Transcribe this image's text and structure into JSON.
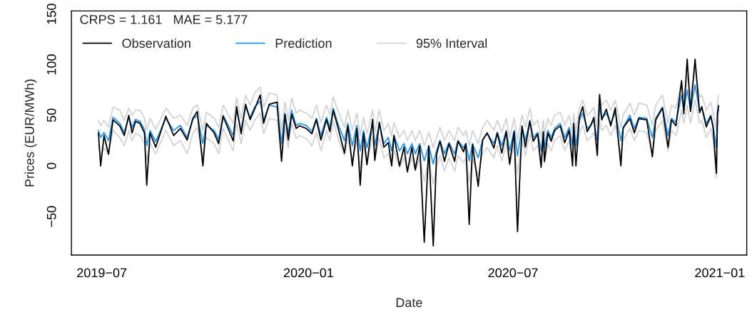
{
  "chart_data": {
    "type": "line",
    "xlabel": "Date",
    "ylabel": "Prices (EUR/MWh)",
    "annotations": [
      "CRPS = 1.161   MAE = 5.177"
    ],
    "xlim": [
      "2019-06-04",
      "2021-01-25"
    ],
    "xticks": [
      {
        "value": "2019-07-01",
        "label": "2019−07"
      },
      {
        "value": "2020-01-01",
        "label": "2020−01"
      },
      {
        "value": "2020-07-01",
        "label": "2020−07"
      },
      {
        "value": "2021-01-01",
        "label": "2021−01"
      }
    ],
    "ylim": [
      -88,
      153
    ],
    "yticks": [
      {
        "value": -50,
        "label": "−50"
      },
      0,
      50,
      100,
      150
    ],
    "grid": false,
    "legend": "top left",
    "marker": "none",
    "line_style": "solid",
    "x": [
      "2019-06-28",
      "2019-06-30",
      "2019-07-03",
      "2019-07-07",
      "2019-07-11",
      "2019-07-17",
      "2019-07-21",
      "2019-07-25",
      "2019-07-28",
      "2019-07-31",
      "2019-08-04",
      "2019-08-08",
      "2019-08-10",
      "2019-08-13",
      "2019-08-18",
      "2019-08-27",
      "2019-09-03",
      "2019-09-09",
      "2019-09-15",
      "2019-09-20",
      "2019-09-24",
      "2019-09-29",
      "2019-10-02",
      "2019-10-09",
      "2019-10-13",
      "2019-10-17",
      "2019-10-26",
      "2019-10-29",
      "2019-11-02",
      "2019-11-06",
      "2019-11-10",
      "2019-11-14",
      "2019-11-19",
      "2019-11-22",
      "2019-11-27",
      "2019-12-04",
      "2019-12-08",
      "2019-12-11",
      "2019-12-14",
      "2019-12-17",
      "2019-12-21",
      "2019-12-24",
      "2019-12-30",
      "2020-01-04",
      "2020-01-08",
      "2020-01-12",
      "2020-01-17",
      "2020-01-20",
      "2020-01-23",
      "2020-01-27",
      "2020-02-02",
      "2020-02-05",
      "2020-02-09",
      "2020-02-13",
      "2020-02-16",
      "2020-02-19",
      "2020-02-22",
      "2020-02-27",
      "2020-02-29",
      "2020-03-04",
      "2020-03-08",
      "2020-03-12",
      "2020-03-15",
      "2020-03-17",
      "2020-03-22",
      "2020-03-26",
      "2020-03-29",
      "2020-04-02",
      "2020-04-05",
      "2020-04-09",
      "2020-04-13",
      "2020-04-17",
      "2020-04-21",
      "2020-04-24",
      "2020-04-27",
      "2020-05-01",
      "2020-05-05",
      "2020-05-10",
      "2020-05-13",
      "2020-05-18",
      "2020-05-20",
      "2020-05-23",
      "2020-05-26",
      "2020-05-31",
      "2020-06-04",
      "2020-06-08",
      "2020-06-14",
      "2020-06-17",
      "2020-06-21",
      "2020-06-25",
      "2020-06-28",
      "2020-07-02",
      "2020-07-05",
      "2020-07-09",
      "2020-07-12",
      "2020-07-16",
      "2020-07-19",
      "2020-07-23",
      "2020-07-26",
      "2020-07-28",
      "2020-07-29",
      "2020-08-01",
      "2020-08-04",
      "2020-08-07",
      "2020-08-12",
      "2020-08-16",
      "2020-08-20",
      "2020-08-23",
      "2020-08-24",
      "2020-08-26",
      "2020-08-29",
      "2020-09-01",
      "2020-09-05",
      "2020-09-08",
      "2020-09-11",
      "2020-09-14",
      "2020-09-16",
      "2020-09-18",
      "2020-09-22",
      "2020-09-26",
      "2020-09-30",
      "2020-10-05",
      "2020-10-07",
      "2020-10-13",
      "2020-10-17",
      "2020-10-21",
      "2020-10-28",
      "2020-11-02",
      "2020-11-05",
      "2020-11-11",
      "2020-11-16",
      "2020-11-19",
      "2020-11-23",
      "2020-11-28",
      "2020-11-30",
      "2020-12-03",
      "2020-12-06",
      "2020-12-10",
      "2020-12-14",
      "2020-12-16",
      "2020-12-20",
      "2020-12-24",
      "2020-12-26",
      "2020-12-29",
      "2020-12-30",
      "2020-12-31"
    ],
    "series": [
      {
        "name": "Observation",
        "color": "#000000",
        "values": [
          32.6,
          0,
          30,
          11.5,
          45.5,
          39.6,
          30,
          50,
          32.6,
          44,
          42,
          32.6,
          -19,
          32.6,
          18.5,
          49,
          30,
          37,
          25.6,
          46.7,
          53.8,
          0,
          42,
          32.6,
          22,
          49,
          24.6,
          58.5,
          31.7,
          60.8,
          45.8,
          56,
          70,
          42,
          60.8,
          63,
          4.5,
          51,
          25.6,
          51,
          37,
          39.6,
          37,
          31.7,
          45.8,
          25.6,
          45.8,
          33.8,
          55,
          38.7,
          12.7,
          39.6,
          0,
          37,
          -19,
          32.6,
          1,
          45.8,
          5.6,
          43,
          18.5,
          23,
          0,
          30,
          0,
          18.5,
          -6,
          18.5,
          -3.8,
          19.7,
          -75.4,
          19.7,
          -78.9,
          11.5,
          24.4,
          4.5,
          22,
          4.5,
          24.4,
          14,
          22,
          -57.7,
          21,
          -20,
          25.6,
          32.6,
          17.6,
          32.6,
          12.7,
          33.8,
          2,
          33.8,
          -64.8,
          39.6,
          18.5,
          44,
          24.4,
          31.5,
          -1.4,
          33.8,
          4.5,
          32.6,
          24.4,
          35,
          39.6,
          23,
          35,
          0,
          42,
          0,
          47.9,
          58.5,
          33.8,
          39.6,
          47.9,
          10.3,
          70.2,
          45.5,
          56,
          39.6,
          57.2,
          0,
          37.3,
          46.7,
          32.6,
          46.7,
          45.5,
          9,
          45.5,
          57.2,
          18.5,
          45.5,
          39.6,
          84.3,
          51.4,
          105.4,
          53.7,
          105.4,
          52.6,
          58.5,
          38.5,
          49,
          38.5,
          -7.3,
          52.6,
          59.6
        ]
      },
      {
        "name": "Prediction",
        "color": "#2196f3",
        "values": [
          35,
          28,
          33,
          25,
          48,
          42,
          33,
          48,
          38,
          46,
          44,
          36,
          20,
          35,
          24,
          47,
          35,
          40,
          28,
          46,
          50,
          22,
          40,
          35,
          26,
          50,
          30,
          55,
          35,
          58,
          48,
          58,
          64,
          45,
          60,
          58,
          22,
          52,
          32,
          55,
          40,
          42,
          40,
          34,
          47,
          30,
          48,
          38,
          57,
          42,
          25,
          42,
          20,
          40,
          15,
          35,
          18,
          42,
          20,
          42,
          22,
          28,
          15,
          30,
          15,
          22,
          12,
          22,
          12,
          22,
          5,
          20,
          2,
          15,
          25,
          12,
          23,
          12,
          25,
          18,
          22,
          5,
          22,
          8,
          26,
          32,
          22,
          33,
          20,
          35,
          15,
          35,
          10,
          38,
          25,
          45,
          28,
          33,
          15,
          33,
          18,
          35,
          28,
          37,
          42,
          28,
          38,
          20,
          40,
          20,
          45,
          52,
          37,
          40,
          45,
          25,
          58,
          47,
          52,
          42,
          53,
          25,
          38,
          50,
          37,
          48,
          47,
          28,
          47,
          58,
          30,
          47,
          43,
          70,
          55,
          75,
          55,
          80,
          55,
          57,
          42,
          50,
          40,
          18,
          50,
          56
        ]
      },
      {
        "name": "95% Interval",
        "color": "#d3d3d3",
        "values": [
          20,
          10,
          18,
          12,
          35,
          28,
          20,
          35,
          25,
          32,
          30,
          22,
          5,
          22,
          12,
          35,
          20,
          25,
          12,
          32,
          38,
          10,
          28,
          22,
          12,
          37,
          15,
          42,
          22,
          45,
          35,
          45,
          52,
          32,
          47,
          45,
          8,
          38,
          18,
          42,
          27,
          30,
          27,
          20,
          33,
          15,
          35,
          25,
          45,
          28,
          10,
          28,
          5,
          25,
          -2,
          20,
          3,
          28,
          5,
          28,
          8,
          12,
          0,
          15,
          -2,
          8,
          -5,
          8,
          -5,
          8,
          -15,
          5,
          -18,
          0,
          10,
          -5,
          8,
          -5,
          10,
          3,
          8,
          -15,
          7,
          -10,
          12,
          18,
          8,
          20,
          5,
          22,
          0,
          22,
          -8,
          25,
          10,
          32,
          15,
          20,
          0,
          20,
          3,
          22,
          15,
          25,
          30,
          15,
          25,
          5,
          28,
          5,
          32,
          40,
          25,
          28,
          33,
          10,
          45,
          35,
          40,
          30,
          40,
          10,
          25,
          37,
          25,
          35,
          33,
          12,
          35,
          45,
          15,
          35,
          30,
          55,
          42,
          60,
          42,
          65,
          42,
          45,
          28,
          37,
          27,
          -12,
          38,
          45
        ]
      },
      {
        "color": "#d3d3d3",
        "values": [
          45,
          40,
          45,
          38,
          58,
          55,
          45,
          57,
          50,
          55,
          55,
          47,
          35,
          47,
          36,
          57,
          47,
          50,
          40,
          57,
          60,
          35,
          53,
          47,
          38,
          60,
          42,
          67,
          47,
          70,
          60,
          72,
          78,
          58,
          72,
          70,
          35,
          63,
          45,
          67,
          52,
          55,
          52,
          47,
          60,
          43,
          60,
          50,
          68,
          55,
          38,
          55,
          35,
          52,
          30,
          48,
          32,
          55,
          33,
          55,
          35,
          42,
          30,
          43,
          28,
          35,
          25,
          35,
          25,
          35,
          20,
          33,
          18,
          28,
          38,
          25,
          35,
          25,
          38,
          30,
          35,
          20,
          35,
          22,
          38,
          45,
          35,
          45,
          33,
          47,
          28,
          47,
          25,
          50,
          38,
          57,
          40,
          45,
          28,
          45,
          30,
          47,
          40,
          50,
          53,
          40,
          50,
          33,
          52,
          33,
          57,
          65,
          50,
          53,
          58,
          38,
          72,
          60,
          65,
          55,
          65,
          38,
          50,
          62,
          50,
          62,
          60,
          40,
          60,
          70,
          42,
          60,
          57,
          82,
          68,
          90,
          70,
          95,
          68,
          70,
          55,
          63,
          53,
          35,
          63,
          70
        ]
      }
    ]
  }
}
